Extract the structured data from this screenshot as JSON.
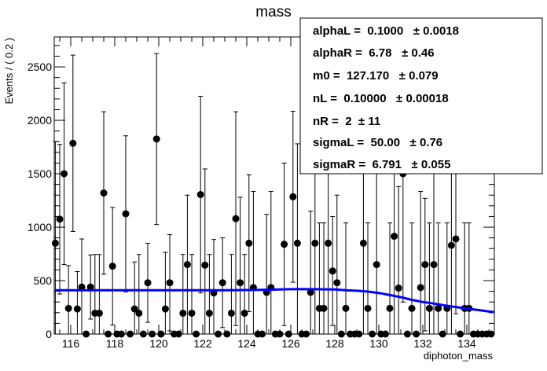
{
  "chart_data": {
    "type": "scatter",
    "title": "mass",
    "xlabel": "diphoton_mass",
    "ylabel": "Events / ( 0.2 )",
    "xlim": [
      115.25,
      135.25
    ],
    "ylim": [
      0,
      2780
    ],
    "x_ticks": [
      "116",
      "118",
      "120",
      "122",
      "124",
      "126",
      "128",
      "130",
      "132",
      "134"
    ],
    "y_ticks": [
      "0",
      "500",
      "1000",
      "1500",
      "2000",
      "2500"
    ],
    "grid": false,
    "legend": "none",
    "series": [
      {
        "style": "points-with-errorbars",
        "x": [
          115.3,
          115.5,
          115.7,
          115.9,
          116.1,
          116.3,
          116.5,
          116.7,
          116.9,
          117.1,
          117.3,
          117.5,
          117.7,
          117.9,
          118.1,
          118.3,
          118.5,
          118.7,
          118.9,
          119.1,
          119.3,
          119.5,
          119.7,
          119.9,
          120.1,
          120.3,
          120.5,
          120.7,
          120.9,
          121.1,
          121.3,
          121.5,
          121.7,
          121.9,
          122.1,
          122.3,
          122.5,
          122.7,
          122.9,
          123.1,
          123.3,
          123.5,
          123.7,
          123.9,
          124.1,
          124.3,
          124.5,
          124.7,
          124.9,
          125.1,
          125.3,
          125.5,
          125.7,
          125.9,
          126.1,
          126.3,
          126.5,
          126.7,
          126.9,
          127.1,
          127.3,
          127.5,
          127.7,
          127.9,
          128.1,
          128.3,
          128.5,
          128.7,
          128.9,
          129.1,
          129.3,
          129.5,
          129.7,
          129.9,
          130.1,
          130.3,
          130.5,
          130.7,
          130.9,
          131.1,
          131.3,
          131.5,
          131.7,
          131.9,
          132.1,
          132.3,
          132.5,
          132.7,
          132.9,
          133.1,
          133.3,
          133.5,
          133.7,
          133.9,
          134.1,
          134.3,
          134.5,
          134.7,
          134.9,
          135.1
        ],
        "y": [
          850,
          1075,
          1500,
          240,
          1785,
          235,
          440,
          0,
          440,
          195,
          195,
          1320,
          0,
          635,
          0,
          0,
          1125,
          0,
          235,
          195,
          0,
          480,
          0,
          1825,
          0,
          235,
          480,
          0,
          0,
          195,
          650,
          195,
          0,
          1305,
          645,
          195,
          385,
          0,
          480,
          0,
          195,
          1080,
          480,
          195,
          850,
          435,
          0,
          0,
          390,
          435,
          0,
          0,
          840,
          0,
          1285,
          850,
          0,
          0,
          390,
          850,
          240,
          240,
          850,
          590,
          480,
          0,
          240,
          0,
          0,
          0,
          850,
          240,
          0,
          650,
          0,
          0,
          240,
          915,
          430,
          1500,
          0,
          240,
          0,
          435,
          650,
          240,
          650,
          240,
          0,
          240,
          830,
          890,
          0,
          240,
          240,
          0,
          0,
          0,
          0,
          0
        ],
        "err": [
          950,
          700,
          850,
          400,
          825,
          350,
          450,
          0,
          300,
          550,
          550,
          760,
          0,
          550,
          0,
          0,
          730,
          0,
          440,
          550,
          0,
          370,
          0,
          800,
          0,
          530,
          450,
          0,
          0,
          550,
          650,
          550,
          0,
          920,
          900,
          550,
          500,
          0,
          420,
          0,
          550,
          1000,
          800,
          550,
          640,
          900,
          0,
          0,
          730,
          900,
          0,
          0,
          760,
          0,
          800,
          930,
          0,
          0,
          760,
          920,
          800,
          800,
          900,
          510,
          820,
          0,
          800,
          0,
          0,
          0,
          1360,
          800,
          0,
          1050,
          0,
          0,
          800,
          1300,
          950,
          1200,
          0,
          800,
          0,
          900,
          620,
          800,
          950,
          800,
          0,
          800,
          1000,
          700,
          0,
          800,
          800,
          0,
          0,
          0,
          0,
          0
        ]
      },
      {
        "style": "fit-curve",
        "color": "#0000ff",
        "x": [
          115.3,
          116,
          117,
          118,
          119,
          120,
          121,
          122,
          123,
          124,
          125,
          126,
          127,
          128,
          128.5,
          129,
          129.5,
          130,
          130.5,
          131,
          131.5,
          132,
          132.5,
          133,
          133.5,
          134,
          134.5,
          135,
          135.25
        ],
        "y": [
          410,
          410,
          410,
          410,
          410,
          410,
          410,
          410,
          410,
          412,
          415,
          420,
          420,
          417,
          410,
          405,
          397,
          385,
          365,
          345,
          320,
          300,
          285,
          268,
          253,
          238,
          225,
          212,
          205
        ]
      }
    ],
    "stats_box": {
      "lines": [
        "alphaL =  0.1000   ± 0.0018",
        "alphaR =  6.78   ± 0.46",
        "m0 =  127.170   ± 0.079",
        "nL =  0.10000   ± 0.00018",
        "nR =  2  ± 11",
        "sigmaL =  50.00   ± 0.76",
        "sigmaR =  6.791   ± 0.055"
      ]
    }
  }
}
